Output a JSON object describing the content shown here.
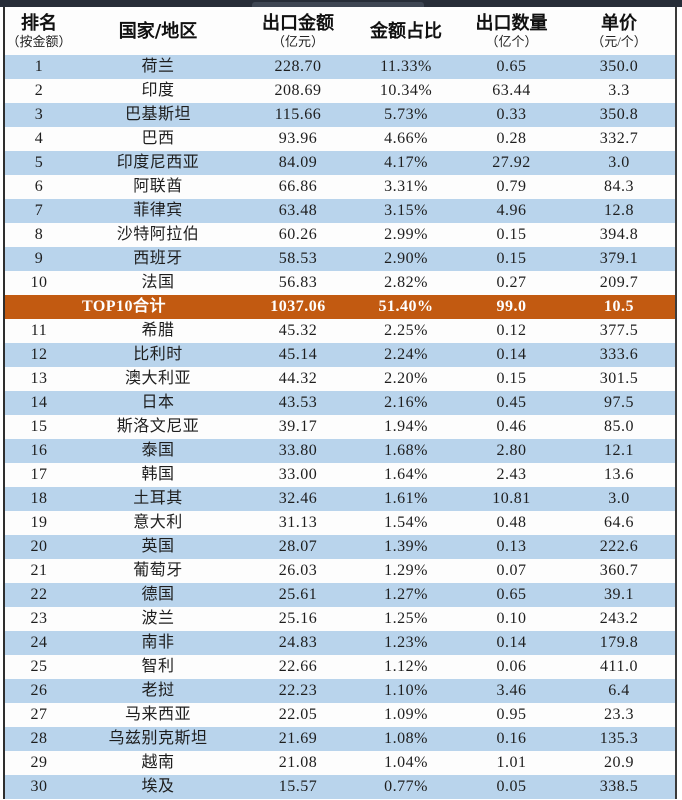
{
  "colors": {
    "stripe_blue": "#b9d4ec",
    "row_white": "#fdfdfd",
    "summary_orange": "#c25a11",
    "top_bar": "#272d38",
    "text": "#1e1e1e",
    "summary_text": "#ffffff"
  },
  "chart_data": {
    "type": "table",
    "columns": [
      {
        "label": "排名",
        "sublabel": "（按金额）"
      },
      {
        "label": "国家/地区",
        "sublabel": ""
      },
      {
        "label": "出口金额",
        "sublabel": "（亿元）"
      },
      {
        "label": "金额占比",
        "sublabel": ""
      },
      {
        "label": "出口数量",
        "sublabel": "（亿个）"
      },
      {
        "label": "单价",
        "sublabel": "（元/个）"
      }
    ],
    "rows": [
      {
        "rank": "1",
        "country": "荷兰",
        "amount": "228.70",
        "share": "11.33%",
        "quantity": "0.65",
        "price": "350.0"
      },
      {
        "rank": "2",
        "country": "印度",
        "amount": "208.69",
        "share": "10.34%",
        "quantity": "63.44",
        "price": "3.3"
      },
      {
        "rank": "3",
        "country": "巴基斯坦",
        "amount": "115.66",
        "share": "5.73%",
        "quantity": "0.33",
        "price": "350.8"
      },
      {
        "rank": "4",
        "country": "巴西",
        "amount": "93.96",
        "share": "4.66%",
        "quantity": "0.28",
        "price": "332.7"
      },
      {
        "rank": "5",
        "country": "印度尼西亚",
        "amount": "84.09",
        "share": "4.17%",
        "quantity": "27.92",
        "price": "3.0"
      },
      {
        "rank": "6",
        "country": "阿联酋",
        "amount": "66.86",
        "share": "3.31%",
        "quantity": "0.79",
        "price": "84.3"
      },
      {
        "rank": "7",
        "country": "菲律宾",
        "amount": "63.48",
        "share": "3.15%",
        "quantity": "4.96",
        "price": "12.8"
      },
      {
        "rank": "8",
        "country": "沙特阿拉伯",
        "amount": "60.26",
        "share": "2.99%",
        "quantity": "0.15",
        "price": "394.8"
      },
      {
        "rank": "9",
        "country": "西班牙",
        "amount": "58.53",
        "share": "2.90%",
        "quantity": "0.15",
        "price": "379.1"
      },
      {
        "rank": "10",
        "country": "法国",
        "amount": "56.83",
        "share": "2.82%",
        "quantity": "0.27",
        "price": "209.7"
      },
      {
        "rank": "11",
        "country": "希腊",
        "amount": "45.32",
        "share": "2.25%",
        "quantity": "0.12",
        "price": "377.5"
      },
      {
        "rank": "12",
        "country": "比利时",
        "amount": "45.14",
        "share": "2.24%",
        "quantity": "0.14",
        "price": "333.6"
      },
      {
        "rank": "13",
        "country": "澳大利亚",
        "amount": "44.32",
        "share": "2.20%",
        "quantity": "0.15",
        "price": "301.5"
      },
      {
        "rank": "14",
        "country": "日本",
        "amount": "43.53",
        "share": "2.16%",
        "quantity": "0.45",
        "price": "97.5"
      },
      {
        "rank": "15",
        "country": "斯洛文尼亚",
        "amount": "39.17",
        "share": "1.94%",
        "quantity": "0.46",
        "price": "85.0"
      },
      {
        "rank": "16",
        "country": "泰国",
        "amount": "33.80",
        "share": "1.68%",
        "quantity": "2.80",
        "price": "12.1"
      },
      {
        "rank": "17",
        "country": "韩国",
        "amount": "33.00",
        "share": "1.64%",
        "quantity": "2.43",
        "price": "13.6"
      },
      {
        "rank": "18",
        "country": "土耳其",
        "amount": "32.46",
        "share": "1.61%",
        "quantity": "10.81",
        "price": "3.0"
      },
      {
        "rank": "19",
        "country": "意大利",
        "amount": "31.13",
        "share": "1.54%",
        "quantity": "0.48",
        "price": "64.6"
      },
      {
        "rank": "20",
        "country": "英国",
        "amount": "28.07",
        "share": "1.39%",
        "quantity": "0.13",
        "price": "222.6"
      },
      {
        "rank": "21",
        "country": "葡萄牙",
        "amount": "26.03",
        "share": "1.29%",
        "quantity": "0.07",
        "price": "360.7"
      },
      {
        "rank": "22",
        "country": "德国",
        "amount": "25.61",
        "share": "1.27%",
        "quantity": "0.65",
        "price": "39.1"
      },
      {
        "rank": "23",
        "country": "波兰",
        "amount": "25.16",
        "share": "1.25%",
        "quantity": "0.10",
        "price": "243.2"
      },
      {
        "rank": "24",
        "country": "南非",
        "amount": "24.83",
        "share": "1.23%",
        "quantity": "0.14",
        "price": "179.8"
      },
      {
        "rank": "25",
        "country": "智利",
        "amount": "22.66",
        "share": "1.12%",
        "quantity": "0.06",
        "price": "411.0"
      },
      {
        "rank": "26",
        "country": "老挝",
        "amount": "22.23",
        "share": "1.10%",
        "quantity": "3.46",
        "price": "6.4"
      },
      {
        "rank": "27",
        "country": "马来西亚",
        "amount": "22.05",
        "share": "1.09%",
        "quantity": "0.95",
        "price": "23.3"
      },
      {
        "rank": "28",
        "country": "乌兹别克斯坦",
        "amount": "21.69",
        "share": "1.08%",
        "quantity": "0.16",
        "price": "135.3"
      },
      {
        "rank": "29",
        "country": "越南",
        "amount": "21.08",
        "share": "1.04%",
        "quantity": "1.01",
        "price": "20.9"
      },
      {
        "rank": "30",
        "country": "埃及",
        "amount": "15.57",
        "share": "0.77%",
        "quantity": "0.05",
        "price": "338.5"
      }
    ],
    "summary": {
      "label": "TOP10合计",
      "amount": "1037.06",
      "share": "51.40%",
      "quantity": "99.0",
      "price": "10.5"
    },
    "summary_insert_after_rank": 10,
    "layout": {
      "banded_rows": true,
      "summary_highlight": "orange"
    }
  }
}
